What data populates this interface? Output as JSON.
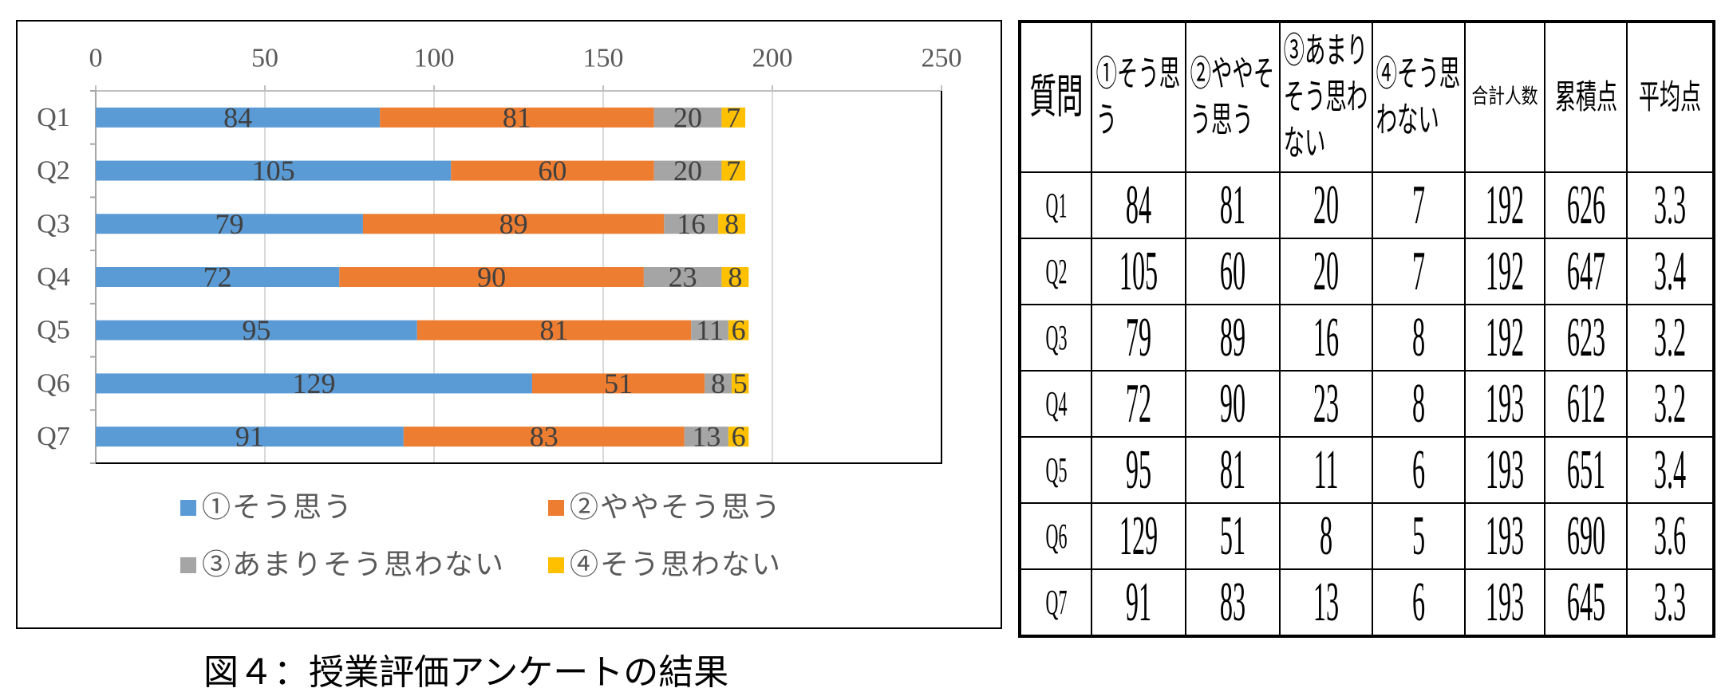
{
  "chart_data": {
    "type": "bar",
    "orientation": "horizontal",
    "stacked": true,
    "categories": [
      "Q1",
      "Q2",
      "Q3",
      "Q4",
      "Q5",
      "Q6",
      "Q7"
    ],
    "series": [
      {
        "name": "①そう思う",
        "color": "#5B9BD5",
        "values": [
          84,
          105,
          79,
          72,
          95,
          129,
          91
        ]
      },
      {
        "name": "②ややそう思う",
        "color": "#ED7D31",
        "values": [
          81,
          60,
          89,
          90,
          81,
          51,
          83
        ]
      },
      {
        "name": "③あまりそう思わない",
        "color": "#A5A5A5",
        "values": [
          20,
          20,
          16,
          23,
          11,
          8,
          13
        ]
      },
      {
        "name": "④そう思わない",
        "color": "#FFC000",
        "values": [
          7,
          7,
          8,
          8,
          6,
          5,
          6
        ]
      }
    ],
    "xlim": [
      0,
      250
    ],
    "xticks": [
      0,
      50,
      100,
      150,
      200,
      250
    ],
    "x_axis_position": "top",
    "grid": "vertical",
    "legend": "bottom",
    "data_labels": true
  },
  "table": {
    "headers": [
      "質問",
      "①そう思う",
      "②ややそう思う",
      "③あまりそう思わない",
      "④そう思わない",
      "合計人数",
      "累積点",
      "平均点"
    ],
    "rows": [
      [
        "Q1",
        84,
        81,
        20,
        7,
        192,
        626,
        3.3
      ],
      [
        "Q2",
        105,
        60,
        20,
        7,
        192,
        647,
        3.4
      ],
      [
        "Q3",
        79,
        89,
        16,
        8,
        192,
        623,
        3.2
      ],
      [
        "Q4",
        72,
        90,
        23,
        8,
        193,
        612,
        3.2
      ],
      [
        "Q5",
        95,
        81,
        11,
        6,
        193,
        651,
        3.4
      ],
      [
        "Q6",
        129,
        51,
        8,
        5,
        193,
        690,
        3.6
      ],
      [
        "Q7",
        91,
        83,
        13,
        6,
        193,
        645,
        3.3
      ]
    ]
  },
  "caption": "図４：授業評価アンケートの結果"
}
